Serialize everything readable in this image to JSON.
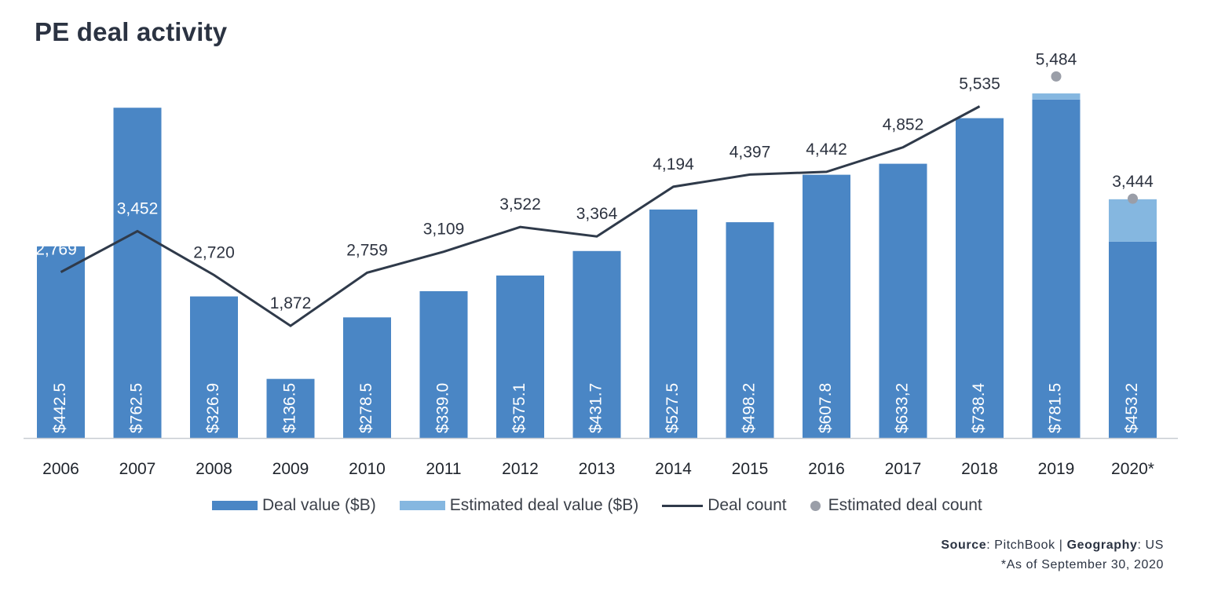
{
  "colors": {
    "deal_value": "#4a86c5",
    "estimated_deal_value": "#85b7e0",
    "deal_count": "#2f3a4a",
    "estimated_deal_count": "#9a9ea8",
    "axis": "#c8ccd2"
  },
  "chart_data": {
    "type": "bar",
    "title": "PE deal activity",
    "categories": [
      "2006",
      "2007",
      "2008",
      "2009",
      "2010",
      "2011",
      "2012",
      "2013",
      "2014",
      "2015",
      "2016",
      "2017",
      "2018",
      "2019",
      "2020*"
    ],
    "series": [
      {
        "name": "Deal value ($B)",
        "type": "bar",
        "values": [
          442.5,
          762.5,
          326.9,
          136.5,
          278.5,
          339.0,
          375.1,
          431.7,
          527.5,
          498.2,
          607.8,
          633.2,
          738.4,
          781.5,
          453.2
        ],
        "labels": [
          "$442.5",
          "$762.5",
          "$326.9",
          "$136.5",
          "$278.5",
          "$339.0",
          "$375.1",
          "$431.7",
          "$527.5",
          "$498.2",
          "$607.8",
          "$633,2",
          "$738.4",
          "$781.5",
          "$453.2"
        ]
      },
      {
        "name": "Estimated deal value ($B)",
        "type": "stacked-bar",
        "values": [
          0,
          0,
          0,
          0,
          0,
          0,
          0,
          0,
          0,
          0,
          0,
          0,
          0,
          14,
          98
        ]
      },
      {
        "name": "Deal count",
        "type": "line",
        "values": [
          2769,
          3452,
          2720,
          1872,
          2759,
          3109,
          3522,
          3364,
          4194,
          4397,
          4442,
          4852,
          5535,
          null,
          null
        ],
        "labels": [
          "2,769",
          "3,452",
          "2,720",
          "1,872",
          "2,759",
          "3,109",
          "3,522",
          "3,364",
          "4,194",
          "4,397",
          "4,442",
          "4,852",
          "5,535",
          "",
          ""
        ]
      },
      {
        "name": "Estimated deal count",
        "type": "scatter",
        "values": [
          null,
          null,
          null,
          null,
          null,
          null,
          null,
          null,
          null,
          null,
          null,
          null,
          null,
          5484,
          3444
        ],
        "labels": [
          "",
          "",
          "",
          "",
          "",
          "",
          "",
          "",
          "",
          "",
          "",
          "",
          "",
          "5,484",
          "3,444"
        ]
      }
    ],
    "xlabel": "",
    "ylabel": "",
    "ylim_value": [
      0,
      830
    ],
    "ylim_count": [
      0,
      6000
    ],
    "legend": "bottom"
  },
  "legend": {
    "deal_value": "Deal value ($B)",
    "estimated_deal_value": "Estimated deal value ($B)",
    "deal_count": "Deal count",
    "estimated_deal_count": "Estimated deal count"
  },
  "footer": {
    "source_label": "Source",
    "source_value": ": PitchBook | ",
    "geography_label": "Geography",
    "geography_value": ": US",
    "note": "*As of September 30, 2020"
  }
}
